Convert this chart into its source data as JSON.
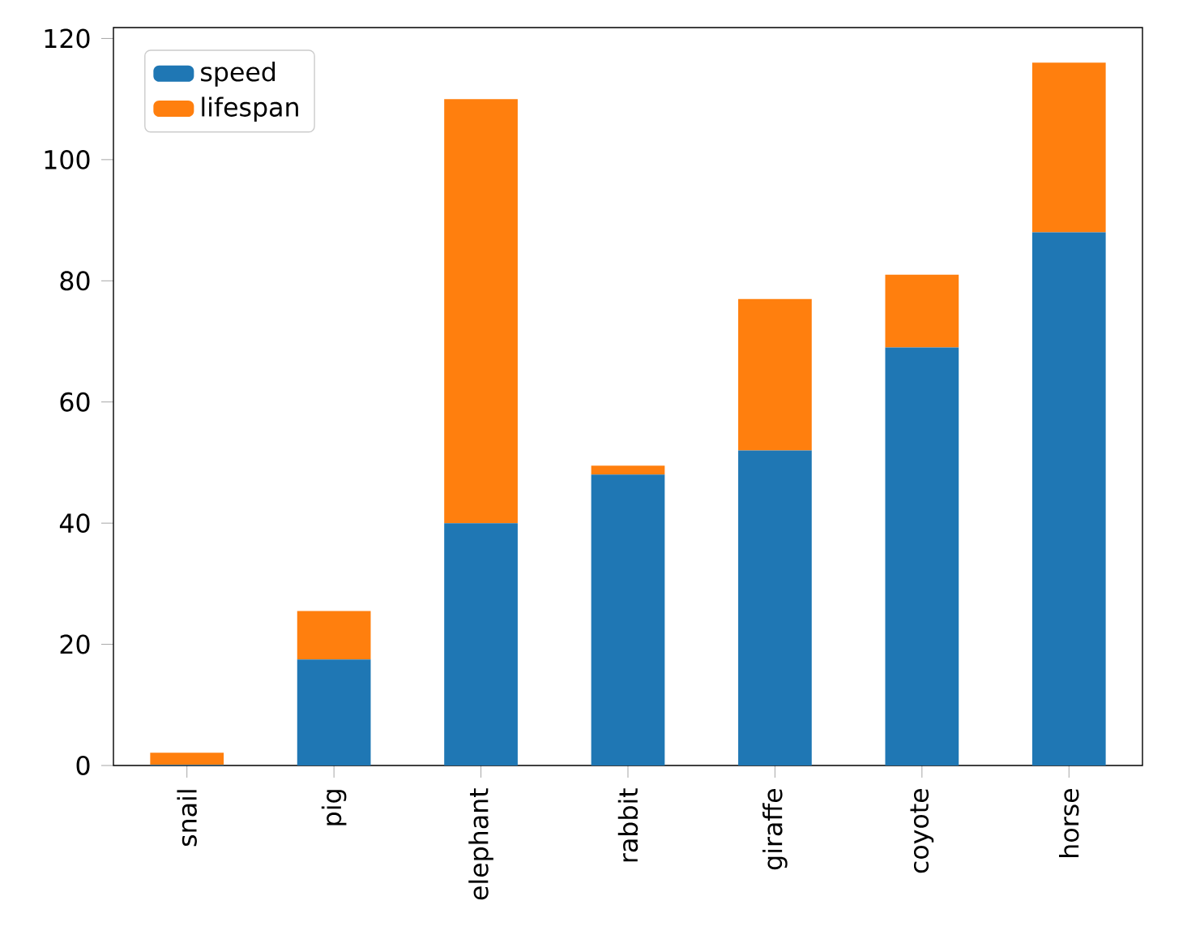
{
  "chart_data": {
    "type": "bar",
    "stacked": true,
    "categories": [
      "snail",
      "pig",
      "elephant",
      "rabbit",
      "giraffe",
      "coyote",
      "horse"
    ],
    "series": [
      {
        "name": "speed",
        "color": "#1f77b4",
        "values": [
          0.1,
          17.5,
          40,
          48,
          52,
          69,
          88
        ]
      },
      {
        "name": "lifespan",
        "color": "#ff7f0e",
        "values": [
          2,
          8,
          70,
          1.5,
          25,
          12,
          28
        ]
      }
    ],
    "ylim": [
      0,
      121.8
    ],
    "yticks": [
      0,
      20,
      40,
      60,
      80,
      100,
      120
    ],
    "legend": "top left",
    "grid": false
  }
}
